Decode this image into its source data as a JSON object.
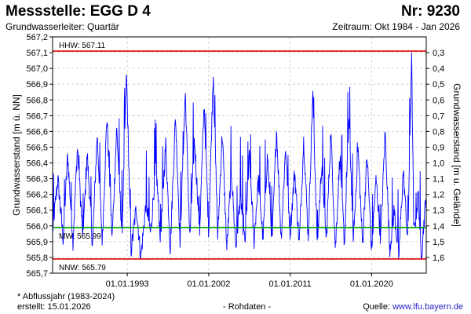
{
  "header": {
    "title": "Messstelle: EGG D 4",
    "number": "Nr: 9230",
    "aquifer": "Grundwasserleiter: Quartär",
    "period": "Zeitraum: Okt 1984 - Jan 2026"
  },
  "footer": {
    "note": "* Abflussjahr (1983-2024)",
    "created": "erstellt:  15.01.2026",
    "raw": "- Rohdaten -",
    "source_label": "Quelle: ",
    "source_link": "www.lfu.bayern.de"
  },
  "chart_data": {
    "type": "line",
    "ylabel": "Grundwasserstand [m ü. NN]",
    "y2label": "Grundwasserstand [m u. Gelände]",
    "ylim": [
      565.7,
      567.2
    ],
    "yticks": [
      "565,7",
      "565,8",
      "565,9",
      "566,0",
      "566,1",
      "566,2",
      "566,3",
      "566,4",
      "566,5",
      "566,6",
      "566,7",
      "566,8",
      "566,9",
      "567,0",
      "567,1",
      "567,2"
    ],
    "y2_reference": 567.4,
    "y2ticks": [
      "0,3",
      "0,4",
      "0,5",
      "0,6",
      "0,7",
      "0,8",
      "0,9",
      "1,0",
      "1,1",
      "1,2",
      "1,3",
      "1,4",
      "1,5",
      "1,6"
    ],
    "xlim": [
      "1984-10-01",
      "2026-01-15"
    ],
    "xticks": [
      {
        "date": "1993-01-01",
        "label": "01.01.1993"
      },
      {
        "date": "2002-01-01",
        "label": "01.01.2002"
      },
      {
        "date": "2011-01-01",
        "label": "01.01.2011"
      },
      {
        "date": "2020-01-01",
        "label": "01.01.2020"
      }
    ],
    "grid": true,
    "reference_lines": [
      {
        "label": "HHW: 567.11",
        "value": 567.11,
        "color": "#e00000"
      },
      {
        "label": "MW: 565.99",
        "value": 565.99,
        "color": "#00a000"
      },
      {
        "label": "NNW: 565.79",
        "value": 565.79,
        "color": "#e00000"
      }
    ],
    "series": [
      {
        "color": "#0000ff",
        "points": [
          [
            "1984-10-01",
            565.97
          ],
          [
            "1985-05-01",
            566.3
          ],
          [
            "1985-12-01",
            565.92
          ],
          [
            "1986-06-01",
            566.45
          ],
          [
            "1987-01-01",
            565.9
          ],
          [
            "1987-07-01",
            566.5
          ],
          [
            "1988-02-01",
            565.93
          ],
          [
            "1988-08-01",
            566.45
          ],
          [
            "1989-03-01",
            565.88
          ],
          [
            "1989-09-01",
            566.58
          ],
          [
            "1990-04-01",
            565.9
          ],
          [
            "1990-10-01",
            566.7
          ],
          [
            "1991-05-01",
            565.92
          ],
          [
            "1991-11-01",
            566.62
          ],
          [
            "1992-06-01",
            565.95
          ],
          [
            "1992-12-01",
            566.97
          ],
          [
            "1993-06-01",
            565.84
          ],
          [
            "1994-01-01",
            566.12
          ],
          [
            "1994-07-01",
            565.8
          ],
          [
            "1995-02-01",
            566.15
          ],
          [
            "1995-08-01",
            565.95
          ],
          [
            "1996-03-01",
            566.4
          ],
          [
            "1996-09-01",
            565.92
          ],
          [
            "1997-04-01",
            566.52
          ],
          [
            "1997-10-01",
            565.85
          ],
          [
            "1998-05-01",
            566.7
          ],
          [
            "1998-11-01",
            565.9
          ],
          [
            "1999-06-01",
            566.85
          ],
          [
            "1999-12-01",
            565.92
          ],
          [
            "2000-06-01",
            566.55
          ],
          [
            "2001-01-01",
            565.97
          ],
          [
            "2001-07-01",
            566.78
          ],
          [
            "2002-01-01",
            565.95
          ],
          [
            "2002-07-01",
            566.98
          ],
          [
            "2003-01-01",
            565.92
          ],
          [
            "2003-07-01",
            566.6
          ],
          [
            "2004-01-01",
            565.85
          ],
          [
            "2004-07-01",
            566.35
          ],
          [
            "2005-01-01",
            565.86
          ],
          [
            "2005-07-01",
            566.2
          ],
          [
            "2006-01-01",
            565.88
          ],
          [
            "2006-07-01",
            566.45
          ],
          [
            "2007-01-01",
            565.9
          ],
          [
            "2007-07-01",
            566.3
          ],
          [
            "2008-01-01",
            565.92
          ],
          [
            "2008-07-01",
            566.45
          ],
          [
            "2009-01-01",
            565.9
          ],
          [
            "2009-07-01",
            566.62
          ],
          [
            "2010-01-01",
            565.92
          ],
          [
            "2010-07-01",
            566.5
          ],
          [
            "2011-01-01",
            565.95
          ],
          [
            "2011-07-01",
            566.35
          ],
          [
            "2012-01-01",
            565.88
          ],
          [
            "2012-07-01",
            566.55
          ],
          [
            "2013-01-01",
            565.92
          ],
          [
            "2013-07-01",
            566.85
          ],
          [
            "2014-01-01",
            565.88
          ],
          [
            "2014-07-01",
            566.4
          ],
          [
            "2015-01-01",
            565.9
          ],
          [
            "2015-07-01",
            566.6
          ],
          [
            "2016-01-01",
            565.85
          ],
          [
            "2016-07-01",
            566.45
          ],
          [
            "2017-01-01",
            565.88
          ],
          [
            "2017-07-01",
            566.7
          ],
          [
            "2018-01-01",
            565.9
          ],
          [
            "2018-07-01",
            566.5
          ],
          [
            "2019-01-01",
            565.88
          ],
          [
            "2019-07-01",
            566.45
          ],
          [
            "2020-01-01",
            565.85
          ],
          [
            "2020-07-01",
            566.3
          ],
          [
            "2021-01-01",
            565.92
          ],
          [
            "2021-07-01",
            566.6
          ],
          [
            "2022-01-01",
            565.85
          ],
          [
            "2022-07-01",
            566.1
          ],
          [
            "2023-01-01",
            565.8
          ],
          [
            "2023-07-01",
            566.35
          ],
          [
            "2024-01-01",
            565.9
          ],
          [
            "2024-06-01",
            567.1
          ],
          [
            "2024-09-01",
            565.95
          ],
          [
            "2025-03-01",
            566.2
          ],
          [
            "2025-07-01",
            565.8
          ],
          [
            "2025-10-01",
            566.0
          ],
          [
            "2026-01-15",
            566.2
          ]
        ]
      }
    ]
  }
}
